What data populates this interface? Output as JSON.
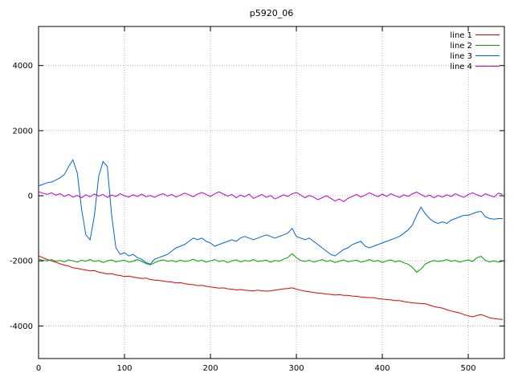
{
  "chart_data": {
    "type": "line",
    "title": "p5920_06",
    "xlabel": "",
    "ylabel": "",
    "xlim": [
      0,
      542
    ],
    "ylim": [
      -5000,
      5200
    ],
    "xticks": [
      0,
      100,
      200,
      300,
      400,
      500
    ],
    "yticks": [
      -4000,
      -2000,
      0,
      2000,
      4000
    ],
    "grid": true,
    "legend_position": "top-right",
    "x": [
      0,
      5,
      10,
      15,
      20,
      25,
      30,
      35,
      40,
      45,
      50,
      55,
      60,
      65,
      70,
      75,
      80,
      85,
      90,
      95,
      100,
      105,
      110,
      115,
      120,
      125,
      130,
      135,
      140,
      145,
      150,
      155,
      160,
      165,
      170,
      175,
      180,
      185,
      190,
      195,
      200,
      205,
      210,
      215,
      220,
      225,
      230,
      235,
      240,
      245,
      250,
      255,
      260,
      265,
      270,
      275,
      280,
      285,
      290,
      295,
      300,
      305,
      310,
      315,
      320,
      325,
      330,
      335,
      340,
      345,
      350,
      355,
      360,
      365,
      370,
      375,
      380,
      385,
      390,
      395,
      400,
      405,
      410,
      415,
      420,
      425,
      430,
      435,
      440,
      445,
      450,
      455,
      460,
      465,
      470,
      475,
      480,
      485,
      490,
      495,
      500,
      505,
      510,
      515,
      520,
      525,
      530,
      535,
      540
    ],
    "series": [
      {
        "name": "line 1",
        "color": "#e00000",
        "values": [
          -1850,
          -1900,
          -1960,
          -2000,
          -2040,
          -2090,
          -2130,
          -2160,
          -2210,
          -2230,
          -2260,
          -2280,
          -2310,
          -2300,
          -2350,
          -2370,
          -2400,
          -2390,
          -2430,
          -2450,
          -2480,
          -2470,
          -2500,
          -2520,
          -2540,
          -2530,
          -2570,
          -2590,
          -2600,
          -2620,
          -2640,
          -2650,
          -2680,
          -2670,
          -2700,
          -2720,
          -2730,
          -2760,
          -2750,
          -2780,
          -2800,
          -2820,
          -2840,
          -2830,
          -2860,
          -2870,
          -2890,
          -2880,
          -2900,
          -2910,
          -2920,
          -2900,
          -2920,
          -2930,
          -2920,
          -2900,
          -2880,
          -2860,
          -2850,
          -2830,
          -2870,
          -2900,
          -2930,
          -2950,
          -2970,
          -2990,
          -3000,
          -3020,
          -3030,
          -3050,
          -3040,
          -3060,
          -3060,
          -3080,
          -3090,
          -3110,
          -3120,
          -3130,
          -3130,
          -3160,
          -3170,
          -3190,
          -3200,
          -3220,
          -3220,
          -3250,
          -3270,
          -3290,
          -3300,
          -3310,
          -3320,
          -3360,
          -3400,
          -3430,
          -3450,
          -3500,
          -3540,
          -3570,
          -3600,
          -3650,
          -3690,
          -3720,
          -3680,
          -3650,
          -3700,
          -3750,
          -3770,
          -3790,
          -3800
        ]
      },
      {
        "name": "line 2",
        "color": "#00a000",
        "values": [
          -1950,
          -1980,
          -2000,
          -1960,
          -2010,
          -1990,
          -2030,
          -1970,
          -2000,
          -2040,
          -1980,
          -2010,
          -1960,
          -2020,
          -1990,
          -2050,
          -2000,
          -1970,
          -2030,
          -2000,
          -1980,
          -2040,
          -2010,
          -1960,
          -2020,
          -2080,
          -2120,
          -2060,
          -2000,
          -1970,
          -2010,
          -1990,
          -2030,
          -1980,
          -2020,
          -2000,
          -1950,
          -2010,
          -1980,
          -2040,
          -2000,
          -1960,
          -2020,
          -1990,
          -2050,
          -2000,
          -1970,
          -2030,
          -1990,
          -2010,
          -1960,
          -2020,
          -2000,
          -1980,
          -2040,
          -1990,
          -2010,
          -1950,
          -1900,
          -1780,
          -1900,
          -1990,
          -2020,
          -1980,
          -2040,
          -2000,
          -1960,
          -2020,
          -1990,
          -2050,
          -2010,
          -1970,
          -2030,
          -2000,
          -1980,
          -2040,
          -2010,
          -1960,
          -2020,
          -1990,
          -2050,
          -2000,
          -1970,
          -2030,
          -2000,
          -2060,
          -2100,
          -2200,
          -2350,
          -2250,
          -2100,
          -2030,
          -1990,
          -2020,
          -2000,
          -1960,
          -2010,
          -1990,
          -2040,
          -2000,
          -1970,
          -2020,
          -1900,
          -1860,
          -1990,
          -2030,
          -2000,
          -2040,
          -2010
        ]
      },
      {
        "name": "line 3",
        "color": "#0066cc",
        "values": [
          300,
          350,
          400,
          420,
          480,
          550,
          650,
          900,
          1100,
          700,
          -400,
          -1200,
          -1350,
          -600,
          600,
          1050,
          900,
          -600,
          -1600,
          -1800,
          -1750,
          -1850,
          -1800,
          -1900,
          -1950,
          -2050,
          -2100,
          -1950,
          -1900,
          -1850,
          -1800,
          -1700,
          -1600,
          -1550,
          -1500,
          -1400,
          -1300,
          -1350,
          -1300,
          -1400,
          -1450,
          -1550,
          -1500,
          -1450,
          -1400,
          -1350,
          -1400,
          -1300,
          -1250,
          -1300,
          -1350,
          -1300,
          -1250,
          -1200,
          -1250,
          -1300,
          -1250,
          -1200,
          -1150,
          -1000,
          -1250,
          -1300,
          -1350,
          -1300,
          -1400,
          -1500,
          -1600,
          -1700,
          -1800,
          -1850,
          -1750,
          -1650,
          -1600,
          -1500,
          -1450,
          -1400,
          -1550,
          -1600,
          -1550,
          -1500,
          -1450,
          -1400,
          -1350,
          -1300,
          -1250,
          -1150,
          -1050,
          -900,
          -600,
          -350,
          -550,
          -700,
          -800,
          -850,
          -800,
          -850,
          -750,
          -700,
          -650,
          -600,
          -600,
          -550,
          -500,
          -480,
          -650,
          -700,
          -720,
          -700,
          -700
        ]
      },
      {
        "name": "line 4",
        "color": "#bf00bf",
        "values": [
          120,
          80,
          40,
          90,
          20,
          60,
          -20,
          40,
          -40,
          10,
          -60,
          30,
          -30,
          50,
          -10,
          40,
          -50,
          20,
          -20,
          60,
          0,
          -40,
          30,
          -20,
          50,
          -30,
          10,
          -50,
          20,
          60,
          -10,
          40,
          -40,
          20,
          80,
          30,
          -30,
          50,
          100,
          40,
          -20,
          60,
          120,
          50,
          -10,
          40,
          -60,
          20,
          -30,
          50,
          -80,
          -20,
          40,
          -50,
          10,
          -100,
          -40,
          30,
          -20,
          60,
          100,
          20,
          -60,
          10,
          -40,
          -120,
          -60,
          0,
          -80,
          -160,
          -100,
          -180,
          -80,
          -20,
          40,
          -40,
          20,
          90,
          30,
          -30,
          50,
          -20,
          60,
          0,
          -50,
          30,
          -20,
          60,
          110,
          40,
          -30,
          20,
          -60,
          10,
          -40,
          30,
          -20,
          60,
          0,
          -50,
          40,
          90,
          30,
          -20,
          60,
          10,
          -40,
          80,
          40
        ]
      }
    ]
  }
}
